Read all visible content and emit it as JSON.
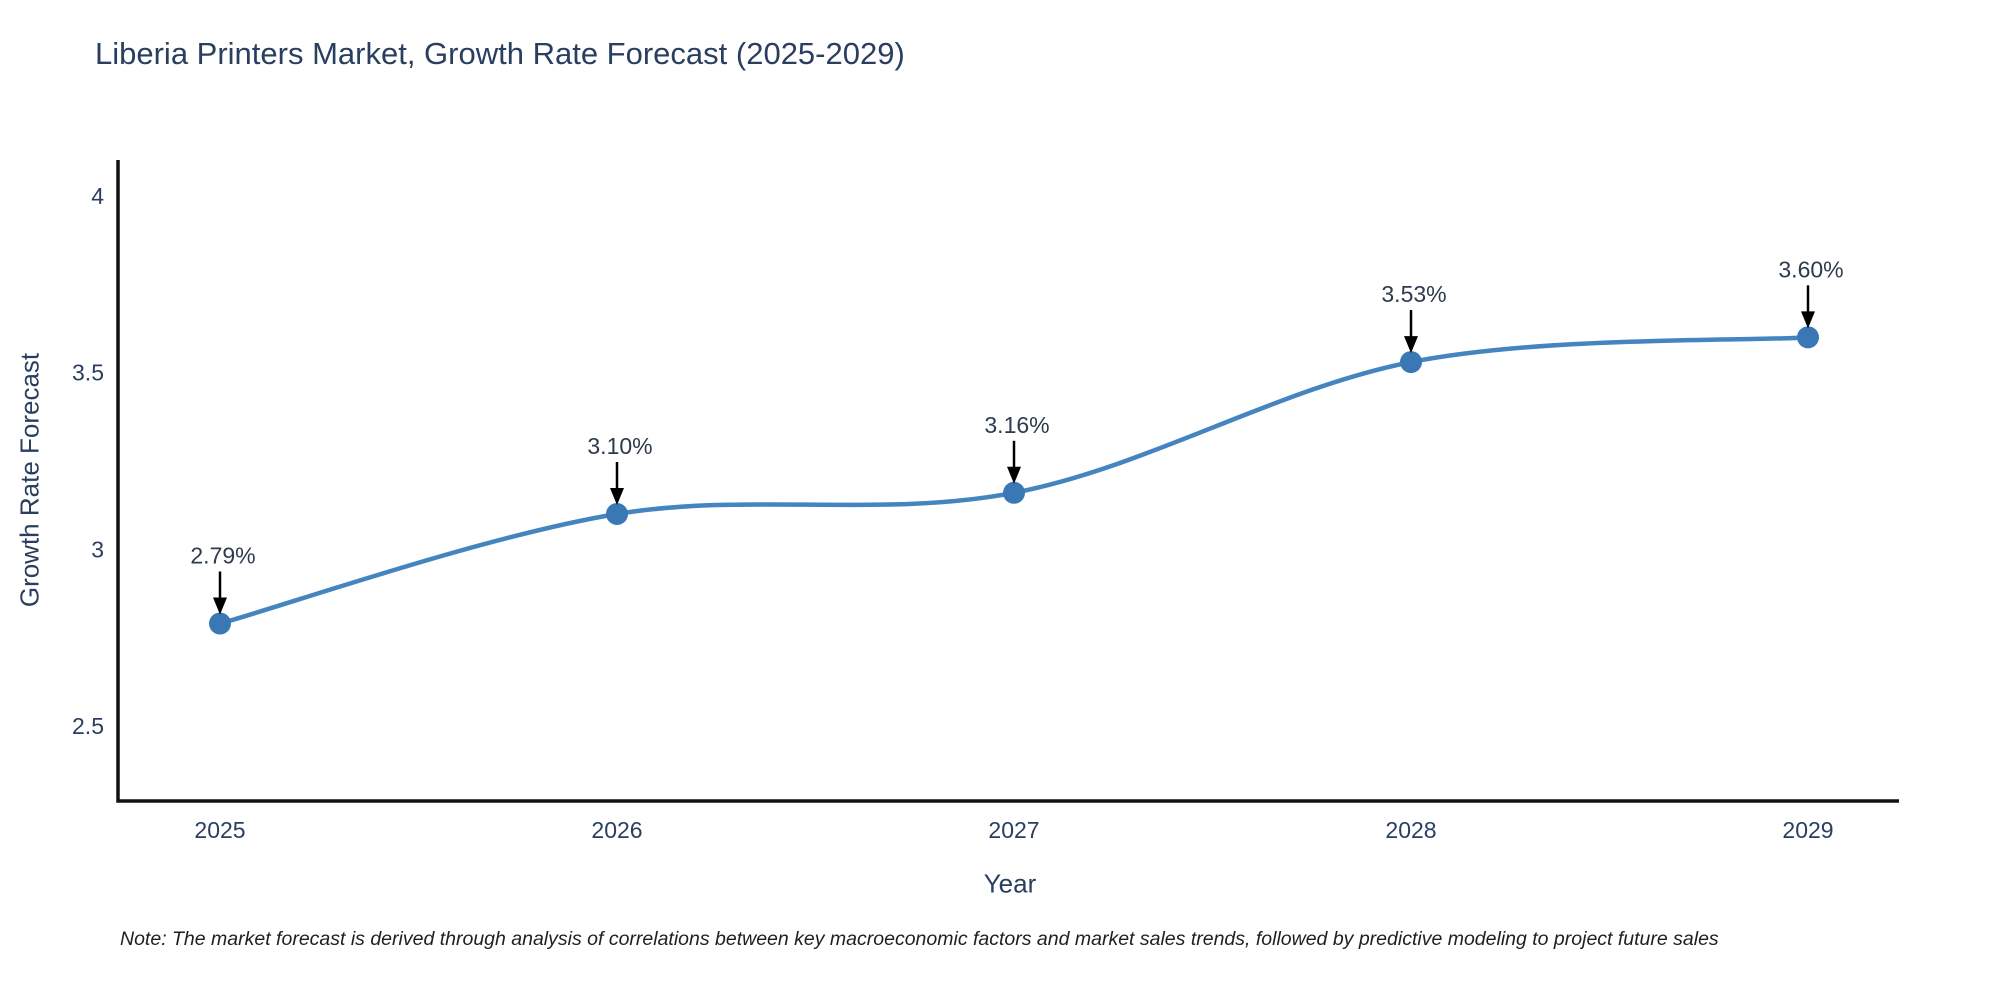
{
  "note": {
    "text": "Note: The market forecast is derived through analysis of correlations between key macroeconomic factors and market sales trends, followed by predictive modeling to project future sales"
  },
  "chart_data": {
    "type": "line",
    "title": "Liberia Printers Market, Growth Rate Forecast (2025-2029)",
    "xlabel": "Year",
    "ylabel": "Growth Rate Forecast",
    "categories": [
      "2025",
      "2026",
      "2027",
      "2028",
      "2029"
    ],
    "values": [
      2.79,
      3.1,
      3.16,
      3.53,
      3.6
    ],
    "point_labels": [
      "2.79%",
      "3.10%",
      "3.16%",
      "3.53%",
      "3.60%"
    ],
    "series_name": "Growth Rate Forecast",
    "line_shape": "spline",
    "markers": true,
    "annotations_with_arrows": true,
    "grid": false,
    "legend_position": "none",
    "yticks": [
      4,
      3.5,
      3,
      2.5
    ],
    "ytick_labels": [
      "4",
      "3.5",
      "3",
      "2.5"
    ],
    "ylim": [
      2.29,
      4.1
    ],
    "colors": {
      "line": "#4484bf",
      "marker": "#3a78b5",
      "axis_line": "#111111",
      "text": "#2a3f5f",
      "annotation_text": "#2e3a4e",
      "arrow": "#000000",
      "background": "#ffffff"
    }
  }
}
